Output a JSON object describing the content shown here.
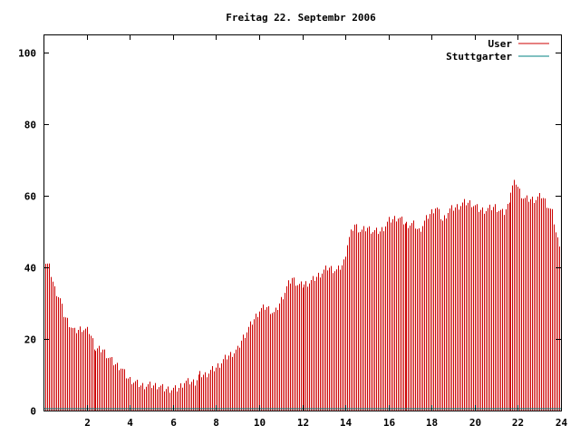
{
  "chart_data": {
    "type": "bar",
    "title": "Freitag 22. Septembr 2006",
    "xlabel": "",
    "ylabel": "",
    "xlim": [
      0,
      24
    ],
    "ylim": [
      0,
      105
    ],
    "x_ticks": [
      2,
      4,
      6,
      8,
      10,
      12,
      14,
      16,
      18,
      20,
      22,
      24
    ],
    "y_ticks": [
      0,
      20,
      40,
      60,
      80,
      100
    ],
    "x_tick_labels": [
      "2",
      "4",
      "6",
      "8",
      "10",
      "12",
      "14",
      "16",
      "18",
      "20",
      "22",
      "24"
    ],
    "y_tick_labels": [
      "0",
      "20",
      "40",
      "60",
      "80",
      "100"
    ],
    "grid": false,
    "legend_position": "top-right",
    "interval_minutes": 5,
    "series": [
      {
        "name": "User",
        "color": "#cc0000",
        "keypoints": [
          [
            0,
            42
          ],
          [
            0.25,
            40
          ],
          [
            0.5,
            34
          ],
          [
            0.75,
            31
          ],
          [
            0.9,
            27
          ],
          [
            1.1,
            25
          ],
          [
            1.4,
            22
          ],
          [
            1.75,
            23
          ],
          [
            2.1,
            22
          ],
          [
            2.4,
            17
          ],
          [
            2.75,
            17
          ],
          [
            3.0,
            15
          ],
          [
            3.3,
            13
          ],
          [
            3.6,
            12
          ],
          [
            3.9,
            9
          ],
          [
            4.2,
            8
          ],
          [
            4.5,
            7
          ],
          [
            5.3,
            7
          ],
          [
            5.6,
            6
          ],
          [
            6.2,
            6
          ],
          [
            6.5,
            8
          ],
          [
            7.0,
            8
          ],
          [
            7.2,
            10
          ],
          [
            7.5,
            10
          ],
          [
            8.0,
            12
          ],
          [
            8.5,
            15
          ],
          [
            9.0,
            17
          ],
          [
            9.2,
            20
          ],
          [
            9.6,
            24
          ],
          [
            10.0,
            28
          ],
          [
            10.3,
            29
          ],
          [
            10.7,
            27
          ],
          [
            11.0,
            31
          ],
          [
            11.3,
            35
          ],
          [
            11.5,
            37
          ],
          [
            11.8,
            35
          ],
          [
            12.0,
            35
          ],
          [
            12.4,
            36
          ],
          [
            12.8,
            38
          ],
          [
            13.2,
            40
          ],
          [
            13.6,
            39
          ],
          [
            13.9,
            41
          ],
          [
            14.1,
            47
          ],
          [
            14.4,
            52
          ],
          [
            14.7,
            50
          ],
          [
            15.0,
            51
          ],
          [
            15.3,
            50
          ],
          [
            15.6,
            50
          ],
          [
            16.0,
            53
          ],
          [
            16.4,
            54
          ],
          [
            16.8,
            52
          ],
          [
            17.2,
            52
          ],
          [
            17.4,
            50
          ],
          [
            17.8,
            54
          ],
          [
            18.2,
            57
          ],
          [
            18.5,
            53
          ],
          [
            18.8,
            56
          ],
          [
            19.2,
            57
          ],
          [
            19.5,
            58
          ],
          [
            19.8,
            58
          ],
          [
            20.2,
            56
          ],
          [
            20.5,
            56
          ],
          [
            20.9,
            57
          ],
          [
            21.3,
            55
          ],
          [
            21.5,
            57
          ],
          [
            21.7,
            62
          ],
          [
            21.9,
            64
          ],
          [
            22.1,
            61
          ],
          [
            22.3,
            59
          ],
          [
            22.8,
            59
          ],
          [
            23.1,
            60
          ],
          [
            23.3,
            58
          ],
          [
            23.6,
            55
          ],
          [
            23.8,
            48
          ],
          [
            24.0,
            46
          ]
        ]
      },
      {
        "name": "Stuttgarter",
        "color": "#008080",
        "keypoints": [
          [
            0,
            0
          ],
          [
            24,
            0
          ]
        ]
      }
    ]
  }
}
